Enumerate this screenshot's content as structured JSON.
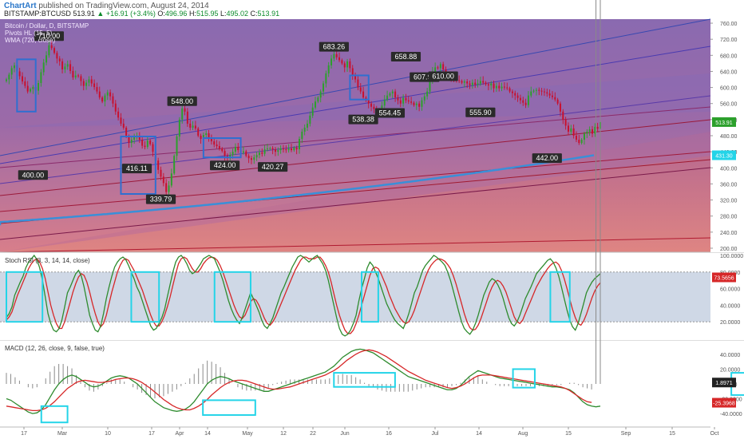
{
  "header": {
    "author": "ChartArt",
    "published": "published on TradingView.com, August 24, 2014",
    "symbol": "BITSTAMP:BTCUSD",
    "last": "513.91",
    "change": "▲ +16.91 (+3.4%)",
    "o_label": "O:",
    "o": "496.96",
    "h_label": "H:",
    "h": "515.95",
    "l_label": "L:",
    "l": "495.02",
    "c_label": "C:",
    "c": "513.91"
  },
  "colors": {
    "up": "#2ca02c",
    "down": "#c8102e",
    "stoch_k": "#2e8b2e",
    "stoch_d": "#d62728",
    "wma": "#3a8fd8",
    "box_blue": "#2f6fd0",
    "box_cyan": "#24d4e8"
  },
  "legends": {
    "price_title": "Bitcoin / Dollar, D, BITSTAMP",
    "pivots": "Pivots HL (15, 5)",
    "wma": "WMA (720, close)",
    "stoch": "Stoch RSI (3, 3, 14, 14, close)",
    "macd": "MACD (12, 26, close, 9, false, true)"
  },
  "chart_data": [
    {
      "type": "candlestick",
      "name": "Bitcoin / Dollar, D, BITSTAMP",
      "ylim": [
        190,
        770
      ],
      "y_ticks": [
        "760.00",
        "720.00",
        "680.00",
        "640.00",
        "600.00",
        "560.00",
        "520.00",
        "480.00",
        "440.00",
        "400.00",
        "360.00",
        "320.00",
        "280.00",
        "240.00",
        "200.00"
      ],
      "x_ticks": [
        "17",
        "Mar",
        "10",
        "17",
        "Apr",
        "14",
        "May",
        "12",
        "22",
        "Jun",
        "16",
        "Jul",
        "14",
        "Aug",
        "15",
        "Sep",
        "15",
        "Oct"
      ],
      "pivot_labels": [
        {
          "label": "710.00",
          "date": "Feb 27",
          "value": 710
        },
        {
          "label": "400.00",
          "date": "Feb 22",
          "value": 400
        },
        {
          "label": "548.00",
          "date": "Apr 10",
          "value": 548
        },
        {
          "label": "416.11",
          "date": "Mar 30",
          "value": 416.11
        },
        {
          "label": "339.79",
          "date": "Apr 10",
          "value": 339.79
        },
        {
          "label": "424.00",
          "date": "Apr 22",
          "value": 424
        },
        {
          "label": "420.27",
          "date": "May 5",
          "value": 420.27
        },
        {
          "label": "683.26",
          "date": "Jun 3",
          "value": 683.26
        },
        {
          "label": "538.38",
          "date": "Jun 14",
          "value": 538.38
        },
        {
          "label": "554.45",
          "date": "Jun 24",
          "value": 554.45
        },
        {
          "label": "658.88",
          "date": "Jun 30",
          "value": 658.88
        },
        {
          "label": "607.90",
          "date": "Jul 8",
          "value": 607.9
        },
        {
          "label": "610.00",
          "date": "Jul 15",
          "value": 610
        },
        {
          "label": "555.90",
          "date": "Aug 1",
          "value": 555.9
        },
        {
          "label": "442.00",
          "date": "Aug 18",
          "value": 442
        }
      ],
      "price_markers": [
        {
          "label": "513.91",
          "value": 513.91,
          "color": "#2ca02c"
        },
        {
          "label": "431.30",
          "value": 431.3,
          "color": "#24d4e8"
        }
      ],
      "closes": [
        620,
        632,
        648,
        655,
        640,
        628,
        615,
        604,
        590,
        596,
        601,
        592,
        611,
        638,
        662,
        680,
        705,
        698,
        686,
        672,
        665,
        645,
        652,
        658,
        641,
        625,
        630,
        628,
        616,
        604,
        612,
        620,
        610,
        601,
        590,
        575,
        565,
        580,
        588,
        578,
        560,
        540,
        525,
        510,
        500,
        478,
        462,
        470,
        478,
        480,
        470,
        455,
        452,
        468,
        459,
        440,
        418,
        395,
        378,
        362,
        340,
        356,
        386,
        430,
        478,
        520,
        548,
        540,
        510,
        500,
        505,
        498,
        480,
        472,
        482,
        486,
        474,
        466,
        458,
        454,
        448,
        442,
        430,
        424,
        432,
        440,
        452,
        444,
        438,
        441,
        430,
        424,
        420,
        426,
        432,
        438,
        435,
        446,
        448,
        449,
        446,
        440,
        444,
        448,
        446,
        444,
        448,
        444,
        450,
        446,
        472,
        490,
        500,
        510,
        530,
        550,
        565,
        575,
        590,
        610,
        635,
        655,
        672,
        683,
        675,
        668,
        660,
        650,
        665,
        648,
        628,
        620,
        600,
        590,
        575,
        568,
        560,
        552,
        546,
        540,
        538,
        555,
        570,
        580,
        585,
        590,
        575,
        568,
        560,
        574,
        568,
        565,
        562,
        556,
        560,
        552,
        568,
        578,
        590,
        615,
        640,
        650,
        648,
        658,
        645,
        632,
        625,
        622,
        620,
        618,
        616,
        612,
        615,
        610,
        606,
        612,
        607,
        610,
        616,
        612,
        608,
        605,
        610,
        598,
        604,
        598,
        602,
        600,
        598,
        590,
        586,
        580,
        574,
        568,
        562,
        556,
        580,
        590,
        592,
        594,
        592,
        590,
        588,
        585,
        580,
        576,
        570,
        560,
        540,
        520,
        505,
        490,
        498,
        480,
        470,
        462,
        470,
        485,
        490,
        496,
        485,
        502,
        497,
        513.91
      ],
      "wma_line": {
        "name": "WMA (720, close)",
        "start": 265,
        "end": 431.3
      }
    },
    {
      "type": "line",
      "name": "Stoch RSI (3, 3, 14, 14, close)",
      "ylim": [
        0,
        100
      ],
      "y_ticks": [
        "100.0000",
        "80.0000",
        "60.0000",
        "40.0000",
        "20.0000"
      ],
      "band": [
        20,
        80
      ],
      "marker": "73.5656",
      "series_k": [
        25,
        30,
        38,
        52,
        60,
        68,
        75,
        85,
        92,
        96,
        100,
        95,
        85,
        70,
        50,
        30,
        18,
        10,
        8,
        12,
        22,
        38,
        55,
        62,
        70,
        78,
        82,
        75,
        62,
        45,
        28,
        18,
        10,
        8,
        15,
        30,
        48,
        62,
        75,
        86,
        92,
        96,
        98,
        95,
        88,
        80,
        72,
        62,
        55,
        45,
        35,
        25,
        15,
        10,
        12,
        18,
        25,
        35,
        50,
        65,
        80,
        92,
        98,
        100,
        96,
        90,
        82,
        78,
        80,
        85,
        90,
        96,
        98,
        100,
        98,
        96,
        88,
        80,
        70,
        58,
        46,
        36,
        28,
        22,
        18,
        25,
        35,
        45,
        55,
        48,
        40,
        32,
        22,
        15,
        12,
        18,
        25,
        35,
        45,
        55,
        62,
        70,
        78,
        86,
        92,
        98,
        100,
        98,
        95,
        92,
        95,
        98,
        100,
        95,
        90,
        82,
        70,
        55,
        40,
        25,
        12,
        5,
        3,
        5,
        10,
        18,
        28,
        45,
        60,
        72,
        85,
        92,
        88,
        80,
        72,
        62,
        52,
        42,
        35,
        28,
        22,
        18,
        15,
        12,
        20,
        30,
        42,
        55,
        62,
        72,
        82,
        88,
        92,
        96,
        100,
        98,
        95,
        92,
        88,
        80,
        70,
        58,
        45,
        32,
        20,
        12,
        8,
        5,
        10,
        18,
        28,
        40,
        52,
        60,
        68,
        72,
        70,
        65,
        58,
        48,
        36,
        25,
        18,
        15,
        20,
        28,
        38,
        48,
        55,
        62,
        70,
        78,
        82,
        86,
        90,
        94,
        96,
        92,
        85,
        75,
        62,
        48,
        34,
        22,
        14,
        10,
        18,
        30,
        42,
        55,
        62,
        68,
        72,
        75,
        78
      ],
      "series_d": [
        22,
        26,
        32,
        42,
        52,
        60,
        68,
        76,
        84,
        90,
        94,
        96,
        92,
        84,
        72,
        56,
        40,
        28,
        18,
        12,
        12,
        20,
        32,
        44,
        56,
        66,
        74,
        78,
        76,
        68,
        56,
        42,
        30,
        20,
        14,
        18,
        28,
        42,
        56,
        68,
        80,
        88,
        94,
        96,
        94,
        88,
        82,
        74,
        66,
        58,
        48,
        38,
        28,
        20,
        15,
        15,
        20,
        28,
        38,
        50,
        64,
        78,
        90,
        96,
        98,
        96,
        90,
        84,
        80,
        80,
        84,
        90,
        94,
        97,
        98,
        97,
        94,
        88,
        80,
        70,
        60,
        50,
        40,
        32,
        26,
        24,
        28,
        36,
        44,
        48,
        46,
        40,
        32,
        24,
        18,
        16,
        20,
        26,
        34,
        42,
        50,
        58,
        66,
        74,
        82,
        88,
        94,
        98,
        98,
        96,
        96,
        96,
        98,
        98,
        94,
        88,
        80,
        68,
        54,
        40,
        28,
        18,
        10,
        6,
        6,
        10,
        18,
        28,
        40,
        52,
        64,
        76,
        84,
        86,
        84,
        78,
        70,
        62,
        52,
        44,
        36,
        30,
        24,
        20,
        18,
        20,
        26,
        34,
        44,
        54,
        64,
        74,
        82,
        88,
        92,
        95,
        96,
        95,
        93,
        89,
        84,
        76,
        66,
        54,
        42,
        30,
        20,
        13,
        10,
        11,
        16,
        24,
        34,
        44,
        54,
        62,
        68,
        70,
        68,
        63,
        56,
        46,
        36,
        26,
        20,
        18,
        22,
        30,
        38,
        46,
        54,
        62,
        68,
        74,
        79,
        84,
        88,
        91,
        92,
        89,
        82,
        72,
        60,
        47,
        35,
        25,
        18,
        16,
        21,
        29,
        39,
        49,
        57,
        63,
        67
      ],
      "x_ticks": [
        "17",
        "Mar",
        "10",
        "17",
        "Apr",
        "14",
        "May",
        "12",
        "22",
        "Jun",
        "16",
        "Jul",
        "14",
        "Aug",
        "15",
        "Sep",
        "15",
        "Oct"
      ]
    },
    {
      "type": "line+histogram",
      "name": "MACD (12, 26, close, 9, false, true)",
      "ylim": [
        -55,
        55
      ],
      "y_ticks": [
        "40.0000",
        "20.0000",
        "0.0000",
        "-20.0000",
        "-40.0000"
      ],
      "markers": [
        "1.8971",
        "-25.3968"
      ],
      "macd": [
        -20,
        -22,
        -26,
        -30,
        -34,
        -38,
        -40,
        -39,
        -35,
        -28,
        -18,
        -8,
        0,
        6,
        10,
        12,
        10,
        6,
        2,
        -2,
        -4,
        -3,
        0,
        4,
        8,
        10,
        11,
        10,
        8,
        4,
        0,
        -6,
        -12,
        -18,
        -24,
        -28,
        -32,
        -34,
        -36,
        -37,
        -36,
        -34,
        -30,
        -24,
        -16,
        -8,
        0,
        5,
        8,
        10,
        9,
        7,
        4,
        2,
        0,
        -2,
        -4,
        -6,
        -8,
        -10,
        -10,
        -8,
        -6,
        -4,
        -2,
        0,
        2,
        4,
        6,
        8,
        10,
        12,
        14,
        16,
        20,
        24,
        30,
        36,
        40,
        44,
        46,
        47,
        46,
        44,
        42,
        38,
        34,
        30,
        26,
        22,
        18,
        14,
        10,
        8,
        6,
        4,
        2,
        0,
        -2,
        -4,
        -6,
        -8,
        -8,
        -6,
        -2,
        4,
        10,
        14,
        18,
        16,
        14,
        12,
        10,
        8,
        7,
        6,
        5,
        4,
        3,
        2,
        1,
        0,
        -1,
        -2,
        -3,
        -4,
        -4,
        -5,
        -6,
        -8,
        -12,
        -18,
        -24,
        -28,
        -30,
        -31,
        -30
      ],
      "signal": [
        -30,
        -31,
        -32,
        -33,
        -34,
        -35,
        -36,
        -36,
        -35,
        -33,
        -29,
        -24,
        -18,
        -12,
        -6,
        -2,
        2,
        4,
        5,
        4,
        3,
        2,
        2,
        3,
        4,
        6,
        7,
        8,
        8,
        7,
        5,
        2,
        -2,
        -6,
        -11,
        -16,
        -21,
        -25,
        -29,
        -32,
        -34,
        -35,
        -35,
        -33,
        -30,
        -26,
        -21,
        -15,
        -10,
        -5,
        -1,
        2,
        4,
        5,
        5,
        4,
        2,
        0,
        -2,
        -4,
        -6,
        -7,
        -7,
        -6,
        -5,
        -4,
        -2,
        0,
        2,
        4,
        6,
        8,
        10,
        12,
        15,
        18,
        22,
        27,
        32,
        36,
        40,
        43,
        45,
        46,
        45,
        43,
        40,
        37,
        33,
        29,
        25,
        21,
        17,
        14,
        11,
        8,
        5,
        3,
        1,
        -1,
        -3,
        -5,
        -6,
        -5,
        -3,
        0,
        4,
        8,
        11,
        12,
        12,
        12,
        11,
        10,
        9,
        8,
        7,
        6,
        5,
        4,
        3,
        2,
        1,
        0,
        -1,
        -2,
        -3,
        -4,
        -6,
        -9,
        -13,
        -17,
        -21,
        -24,
        -25
      ]
    }
  ]
}
